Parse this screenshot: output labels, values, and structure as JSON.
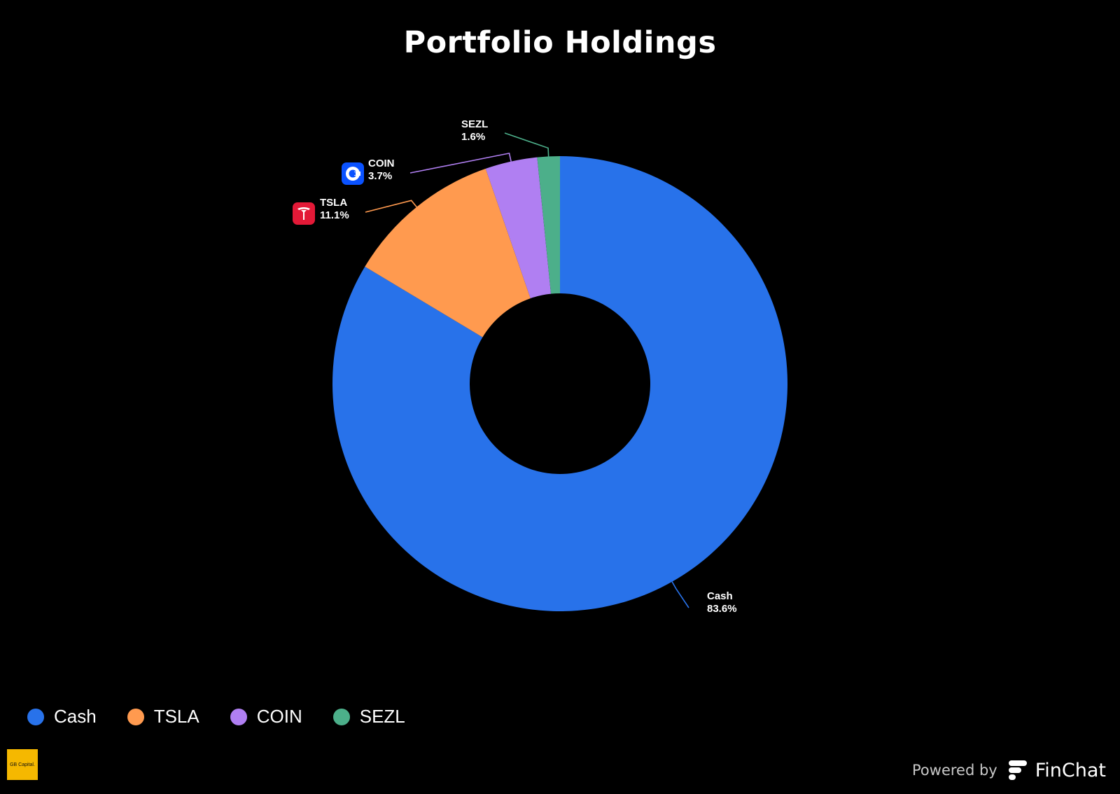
{
  "title": "Portfolio Holdings",
  "chart_data": {
    "type": "pie",
    "donut": true,
    "title": "Portfolio Holdings",
    "categories": [
      "Cash",
      "TSLA",
      "COIN",
      "SEZL"
    ],
    "values": [
      83.6,
      11.1,
      3.7,
      1.6
    ],
    "value_labels": [
      "83.6%",
      "11.1%",
      "3.7%",
      "1.6%"
    ],
    "colors": [
      "#2872ea",
      "#ff9a4f",
      "#b07ff2",
      "#4caf8a"
    ],
    "icons": [
      "",
      "tesla-logo-icon",
      "coinbase-logo-icon",
      ""
    ],
    "legend_position": "bottom-left"
  },
  "legend": [
    {
      "label": "Cash",
      "color": "#2872ea"
    },
    {
      "label": "TSLA",
      "color": "#ff9a4f"
    },
    {
      "label": "COIN",
      "color": "#b07ff2"
    },
    {
      "label": "SEZL",
      "color": "#4caf8a"
    }
  ],
  "footer": {
    "logo_text": "GB Capital.",
    "powered_by": "Powered by",
    "brand": "FinChat"
  }
}
